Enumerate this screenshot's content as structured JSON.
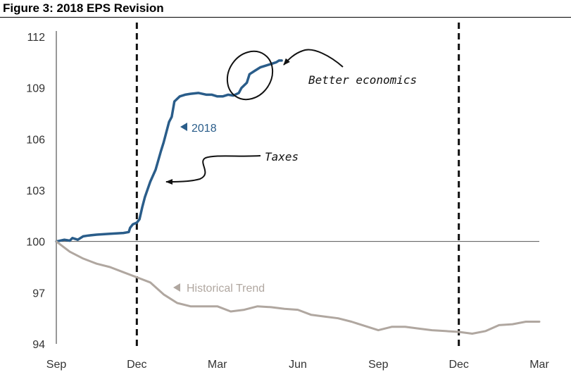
{
  "title": "Figure 3: 2018 EPS Revision",
  "colors": {
    "primary": "#2a5d8a",
    "historical": "#b0a7a0",
    "axis": "#333333",
    "annotation": "#111111"
  },
  "chart_data": {
    "type": "line",
    "title": "Figure 3: 2018 EPS Revision",
    "xlabel": "",
    "ylabel": "",
    "xlim": [
      0,
      18
    ],
    "ylim": [
      94,
      112
    ],
    "x_ticks": [
      {
        "pos": 0,
        "label": "Sep"
      },
      {
        "pos": 3,
        "label": "Dec"
      },
      {
        "pos": 6,
        "label": "Mar"
      },
      {
        "pos": 9,
        "label": "Jun"
      },
      {
        "pos": 12,
        "label": "Sep"
      },
      {
        "pos": 15,
        "label": "Dec"
      },
      {
        "pos": 18,
        "label": "Mar"
      }
    ],
    "y_ticks": [
      {
        "value": 112,
        "label": "112"
      },
      {
        "value": 109,
        "label": "109"
      },
      {
        "value": 106,
        "label": "106"
      },
      {
        "value": 103,
        "label": "103"
      },
      {
        "value": 100,
        "label": "100"
      },
      {
        "value": 97,
        "label": "97"
      },
      {
        "value": 94,
        "label": "94"
      }
    ],
    "reference_line": 100,
    "vertical_markers": [
      3,
      15
    ],
    "series": [
      {
        "name": "2018",
        "label": "2018",
        "x": [
          0.0,
          0.3,
          0.5,
          0.6,
          0.8,
          1.0,
          1.2,
          1.5,
          2.0,
          2.5,
          2.7,
          2.75,
          2.85,
          3.0,
          3.1,
          3.2,
          3.3,
          3.5,
          3.7,
          3.9,
          4.0,
          4.2,
          4.3,
          4.4,
          4.6,
          4.8,
          5.0,
          5.3,
          5.6,
          5.8,
          6.0,
          6.2,
          6.4,
          6.6,
          6.8,
          6.9,
          7.1,
          7.2,
          7.4,
          7.6,
          7.8,
          8.0,
          8.2,
          8.3,
          8.4
        ],
        "values": [
          100.0,
          100.1,
          100.05,
          100.2,
          100.1,
          100.3,
          100.35,
          100.4,
          100.45,
          100.5,
          100.55,
          100.8,
          101.0,
          101.1,
          101.3,
          102.0,
          102.6,
          103.5,
          104.2,
          105.3,
          105.8,
          107.0,
          107.3,
          108.2,
          108.5,
          108.6,
          108.65,
          108.7,
          108.6,
          108.6,
          108.5,
          108.5,
          108.6,
          108.55,
          108.7,
          109.0,
          109.3,
          109.8,
          110.0,
          110.2,
          110.3,
          110.4,
          110.5,
          110.6,
          110.6
        ]
      },
      {
        "name": "Historical Trend",
        "label": "Historical Trend",
        "x": [
          0.0,
          0.5,
          1.0,
          1.5,
          2.0,
          2.5,
          3.0,
          3.5,
          4.0,
          4.5,
          5.0,
          5.5,
          6.0,
          6.5,
          7.0,
          7.5,
          8.0,
          8.5,
          9.0,
          9.5,
          10.0,
          10.5,
          11.0,
          11.5,
          12.0,
          12.5,
          13.0,
          13.5,
          14.0,
          14.5,
          15.0,
          15.5,
          16.0,
          16.5,
          17.0,
          17.5,
          18.0
        ],
        "values": [
          100.0,
          99.4,
          99.0,
          98.7,
          98.5,
          98.2,
          97.9,
          97.6,
          96.9,
          96.4,
          96.2,
          96.2,
          96.2,
          95.9,
          96.0,
          96.2,
          96.15,
          96.05,
          96.0,
          95.7,
          95.6,
          95.5,
          95.3,
          95.05,
          94.8,
          95.0,
          95.0,
          94.9,
          94.8,
          94.75,
          94.7,
          94.6,
          94.75,
          95.1,
          95.15,
          95.3,
          95.3
        ]
      }
    ],
    "annotations": [
      {
        "text": "Better economics"
      },
      {
        "text": "Taxes"
      }
    ]
  }
}
